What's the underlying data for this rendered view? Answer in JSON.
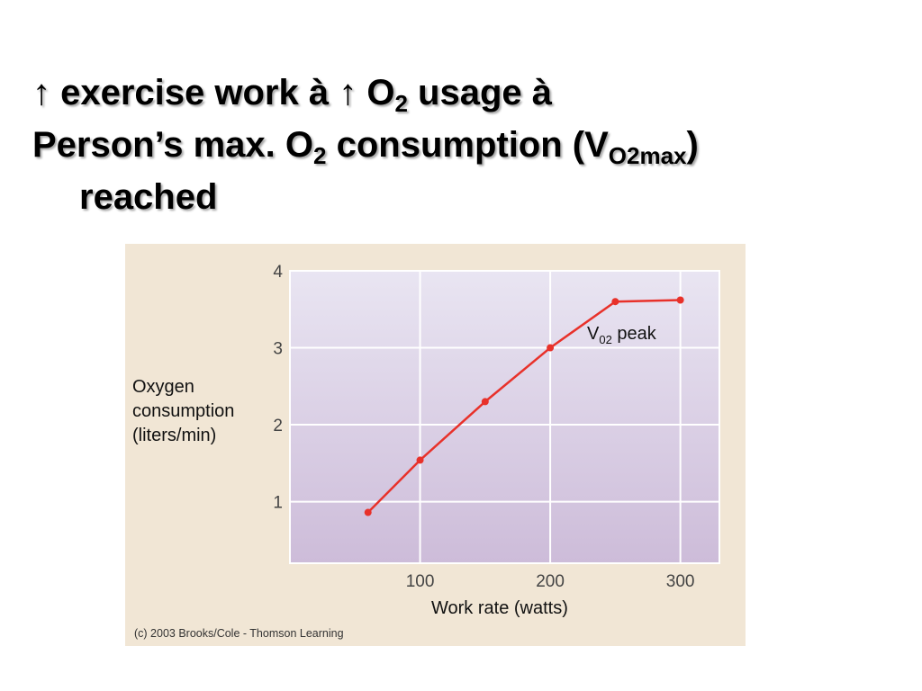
{
  "slide": {
    "title_line1_p1": "↑ exercise work à ↑ O",
    "title_line1_sub": "2",
    "title_line1_p2": " usage à",
    "title_line2_p1": "Person’s max. O",
    "title_line2_sub1": "2",
    "title_line2_p2": " consumption (V",
    "title_line2_sub2": "O2max",
    "title_line2_p3": ")",
    "title_line3": "reached"
  },
  "figure": {
    "ylabel_lines": [
      "Oxygen",
      "consumption",
      "(liters/min)"
    ],
    "xlabel": "Work rate (watts)",
    "peak_label_main": "V",
    "peak_label_sub": "02",
    "peak_label_rest": " peak",
    "credit": "(c) 2003 Brooks/Cole - Thomson Learning"
  },
  "chart_data": {
    "type": "line",
    "title": "",
    "xlabel": "Work rate (watts)",
    "ylabel": "Oxygen consumption (liters/min)",
    "xlim": [
      0,
      330
    ],
    "ylim": [
      0.2,
      4
    ],
    "xticks": [
      100,
      200,
      300
    ],
    "yticks": [
      1,
      2,
      3,
      4
    ],
    "grid": true,
    "series": [
      {
        "x": [
          60,
          100,
          150,
          200,
          250,
          300
        ],
        "y": [
          0.86,
          1.54,
          2.3,
          3.0,
          3.6,
          3.62
        ]
      }
    ],
    "annotations": [
      {
        "text": "V02 peak",
        "near_x": 300,
        "near_y": 3.62
      }
    ],
    "colors": {
      "line": "#e8312a",
      "plot_bg_top": "#e9e5f2",
      "plot_bg_bottom": "#cdbcd9",
      "figure_bg": "#f1e6d5",
      "grid": "#ffffff"
    }
  }
}
